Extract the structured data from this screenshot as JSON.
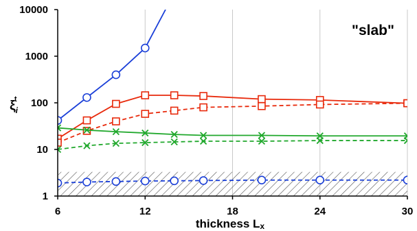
{
  "chart_data": {
    "type": "line",
    "annotation": "\"slab\"",
    "xlabel": "thickness L",
    "xlabel_sub": "x",
    "ylabel": "ξ",
    "ylabel_sub": "i",
    "ylabel_sup": "t",
    "yscale": "log",
    "xlim": [
      6,
      30
    ],
    "ylim": [
      1,
      10000
    ],
    "x_ticks": [
      "6",
      "12",
      "18",
      "24",
      "30"
    ],
    "y_ticks": [
      "1",
      "10",
      "100",
      "1000",
      "10000"
    ],
    "hatched_band": {
      "y_from": 1,
      "y_to": 3.3
    },
    "grid": "vertical",
    "legend": "none",
    "series": [
      {
        "color": "#1a3fd8",
        "marker": "circle",
        "dash": "solid",
        "points": [
          [
            6,
            42
          ],
          [
            8,
            130
          ],
          [
            10,
            400
          ],
          [
            12,
            1500
          ],
          [
            13.4,
            10000
          ]
        ],
        "marker_count": 4
      },
      {
        "color": "#1a3fd8",
        "marker": "circle",
        "dash": "dashed",
        "points": [
          [
            6,
            1.9
          ],
          [
            8,
            2.0
          ],
          [
            10,
            2.05
          ],
          [
            12,
            2.1
          ],
          [
            14,
            2.12
          ],
          [
            16,
            2.15
          ],
          [
            20,
            2.2
          ],
          [
            24,
            2.2
          ],
          [
            30,
            2.2
          ]
        ]
      },
      {
        "color": "#e8290b",
        "marker": "square",
        "dash": "solid",
        "points": [
          [
            6,
            17
          ],
          [
            8,
            42
          ],
          [
            10,
            95
          ],
          [
            12,
            145
          ],
          [
            14,
            145
          ],
          [
            16,
            140
          ],
          [
            20,
            120
          ],
          [
            24,
            115
          ],
          [
            30,
            98
          ]
        ]
      },
      {
        "color": "#e8290b",
        "marker": "square",
        "dash": "dashed",
        "points": [
          [
            6,
            14
          ],
          [
            8,
            25
          ],
          [
            10,
            40
          ],
          [
            12,
            58
          ],
          [
            14,
            68
          ],
          [
            16,
            80
          ],
          [
            20,
            85
          ],
          [
            24,
            92
          ],
          [
            30,
            98
          ]
        ]
      },
      {
        "color": "#20a82c",
        "marker": "x",
        "dash": "solid",
        "points": [
          [
            6,
            29
          ],
          [
            8,
            26
          ],
          [
            10,
            24
          ],
          [
            12,
            22.5
          ],
          [
            14,
            21
          ],
          [
            16,
            20
          ],
          [
            20,
            20
          ],
          [
            24,
            19.5
          ],
          [
            30,
            19.5
          ]
        ]
      },
      {
        "color": "#20a82c",
        "marker": "x",
        "dash": "dashed",
        "points": [
          [
            6,
            10
          ],
          [
            8,
            12
          ],
          [
            10,
            13.5
          ],
          [
            12,
            14
          ],
          [
            14,
            14.5
          ],
          [
            16,
            15
          ],
          [
            20,
            15
          ],
          [
            24,
            15.5
          ],
          [
            30,
            15.5
          ]
        ]
      }
    ]
  }
}
